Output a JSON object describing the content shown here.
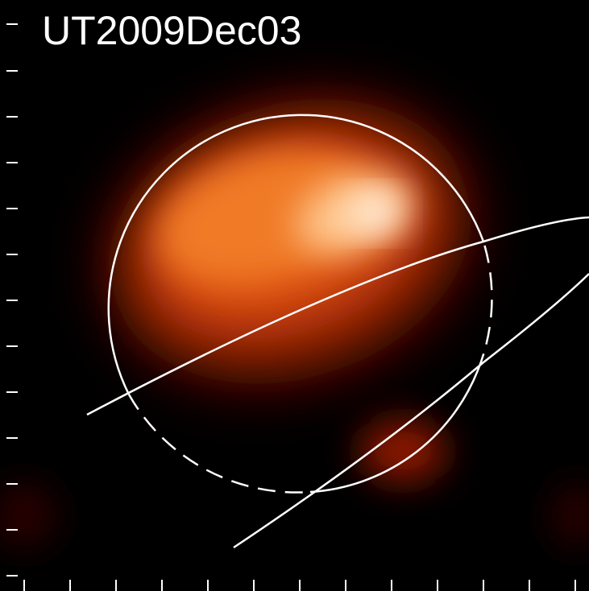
{
  "title": "UT2009Dec03"
}
